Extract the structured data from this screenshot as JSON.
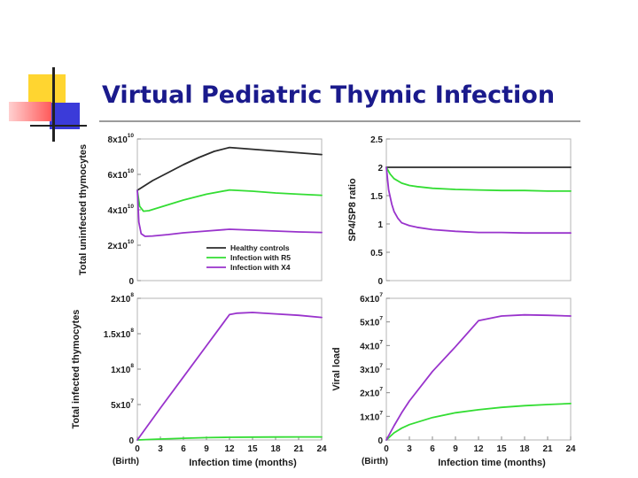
{
  "slide": {
    "title": "Virtual Pediatric Thymic Infection"
  },
  "colors": {
    "healthy": "#2b2b2b",
    "r5": "#33dd33",
    "x4": "#9933cc",
    "title": "#1a1a8c"
  },
  "chart_data": [
    {
      "type": "line",
      "ylabel": "Total uninfected thymocytes",
      "xlabel": "",
      "xlim": [
        0,
        24
      ],
      "ylim": [
        0,
        80000000000.0
      ],
      "yticks": [
        {
          "v": 0,
          "base": "0",
          "exp": ""
        },
        {
          "v": 20000000000.0,
          "base": "2x10",
          "exp": "10"
        },
        {
          "v": 40000000000.0,
          "base": "4x10",
          "exp": "10"
        },
        {
          "v": 60000000000.0,
          "base": "6x10",
          "exp": "10"
        },
        {
          "v": 80000000000.0,
          "base": "8x10",
          "exp": "10"
        }
      ],
      "legend": {
        "position": "bottom-right",
        "entries": [
          "Healthy controls",
          "Infection with R5",
          "Infection with X4"
        ]
      },
      "series": [
        {
          "name": "Healthy controls",
          "color": "healthy",
          "x": [
            0,
            2,
            4,
            6,
            8,
            10,
            12,
            15,
            18,
            21,
            24
          ],
          "y": [
            51000000000.0,
            56500000000.0,
            61000000000.0,
            65500000000.0,
            69500000000.0,
            73000000000.0,
            75200000000.0,
            74200000000.0,
            73200000000.0,
            72200000000.0,
            71200000000.0
          ]
        },
        {
          "name": "Infection with R5",
          "color": "r5",
          "x": [
            0,
            0.3,
            0.8,
            1.5,
            3,
            6,
            9,
            12,
            15,
            18,
            21,
            24
          ],
          "y": [
            51000000000.0,
            42000000000.0,
            39200000000.0,
            39500000000.0,
            41500000000.0,
            45500000000.0,
            48800000000.0,
            51200000000.0,
            50500000000.0,
            49500000000.0,
            48800000000.0,
            48200000000.0
          ]
        },
        {
          "name": "Infection with X4",
          "color": "x4",
          "x": [
            0,
            0.2,
            0.5,
            1,
            2,
            4,
            6,
            9,
            12,
            15,
            18,
            21,
            24
          ],
          "y": [
            51000000000.0,
            33000000000.0,
            26500000000.0,
            25000000000.0,
            25200000000.0,
            26000000000.0,
            27000000000.0,
            28000000000.0,
            29000000000.0,
            28500000000.0,
            28000000000.0,
            27500000000.0,
            27200000000.0
          ]
        }
      ]
    },
    {
      "type": "line",
      "ylabel": "SP4/SP8 ratio",
      "xlabel": "",
      "xlim": [
        0,
        24
      ],
      "ylim": [
        0,
        2.5
      ],
      "yticks": [
        {
          "v": 0,
          "base": "0",
          "exp": ""
        },
        {
          "v": 0.5,
          "base": "0.5",
          "exp": ""
        },
        {
          "v": 1,
          "base": "1",
          "exp": ""
        },
        {
          "v": 1.5,
          "base": "1.5",
          "exp": ""
        },
        {
          "v": 2,
          "base": "2",
          "exp": ""
        },
        {
          "v": 2.5,
          "base": "2.5",
          "exp": ""
        }
      ],
      "series": [
        {
          "name": "Healthy controls",
          "color": "healthy",
          "x": [
            0,
            24
          ],
          "y": [
            2.0,
            2.0
          ]
        },
        {
          "name": "Infection with R5",
          "color": "r5",
          "x": [
            0,
            0.5,
            1,
            2,
            3,
            4,
            6,
            9,
            12,
            15,
            18,
            21,
            24
          ],
          "y": [
            2.0,
            1.88,
            1.8,
            1.72,
            1.68,
            1.66,
            1.63,
            1.61,
            1.6,
            1.59,
            1.59,
            1.58,
            1.58
          ]
        },
        {
          "name": "Infection with X4",
          "color": "x4",
          "x": [
            0,
            0.3,
            0.7,
            1,
            1.5,
            2,
            3,
            4,
            6,
            9,
            12,
            15,
            18,
            21,
            24
          ],
          "y": [
            2.0,
            1.6,
            1.35,
            1.22,
            1.1,
            1.02,
            0.97,
            0.94,
            0.9,
            0.87,
            0.85,
            0.85,
            0.84,
            0.84,
            0.84
          ]
        }
      ]
    },
    {
      "type": "line",
      "ylabel": "Total infected thymocytes",
      "xlabel": "Infection time (months)",
      "xlabel_note": "(Birth)",
      "xlim": [
        0,
        24
      ],
      "ylim": [
        0,
        200000000.0
      ],
      "xticks": [
        "0",
        "3",
        "6",
        "9",
        "12",
        "15",
        "18",
        "21",
        "24"
      ],
      "yticks": [
        {
          "v": 0,
          "base": "0",
          "exp": ""
        },
        {
          "v": 50000000.0,
          "base": "5x10",
          "exp": "7"
        },
        {
          "v": 100000000.0,
          "base": "1x10",
          "exp": "8"
        },
        {
          "v": 150000000.0,
          "base": "1.5x10",
          "exp": "8"
        },
        {
          "v": 200000000.0,
          "base": "2x10",
          "exp": "8"
        }
      ],
      "series": [
        {
          "name": "Infection with R5",
          "color": "r5",
          "x": [
            0,
            3,
            6,
            9,
            12,
            15,
            18,
            21,
            24
          ],
          "y": [
            0,
            1200000.0,
            2400000.0,
            3200000.0,
            3800000.0,
            4000000.0,
            4100000.0,
            4200000.0,
            4200000.0
          ]
        },
        {
          "name": "Infection with X4",
          "color": "x4",
          "x": [
            0,
            3,
            6,
            9,
            12,
            13,
            15,
            18,
            21,
            24
          ],
          "y": [
            0,
            45000000.0,
            89000000.0,
            133000000.0,
            177000000.0,
            179000000.0,
            180000000.0,
            178000000.0,
            176000000.0,
            173000000.0
          ]
        }
      ]
    },
    {
      "type": "line",
      "ylabel": "Viral load",
      "xlabel": "Infection time (months)",
      "xlabel_note": "(Birth)",
      "xlim": [
        0,
        24
      ],
      "ylim": [
        0,
        60000000.0
      ],
      "xticks": [
        "0",
        "3",
        "6",
        "9",
        "12",
        "15",
        "18",
        "21",
        "24"
      ],
      "yticks": [
        {
          "v": 0,
          "base": "0",
          "exp": ""
        },
        {
          "v": 10000000.0,
          "base": "1x10",
          "exp": "7"
        },
        {
          "v": 20000000.0,
          "base": "2x10",
          "exp": "7"
        },
        {
          "v": 30000000.0,
          "base": "3x10",
          "exp": "7"
        },
        {
          "v": 40000000.0,
          "base": "4x10",
          "exp": "7"
        },
        {
          "v": 50000000.0,
          "base": "5x10",
          "exp": "7"
        },
        {
          "v": 60000000.0,
          "base": "6x10",
          "exp": "7"
        }
      ],
      "series": [
        {
          "name": "Infection with R5",
          "color": "r5",
          "x": [
            0,
            1,
            2,
            3,
            6,
            9,
            12,
            15,
            18,
            21,
            24
          ],
          "y": [
            0,
            3000000.0,
            5000000.0,
            6500000.0,
            9500000.0,
            11500000.0,
            12800000.0,
            13800000.0,
            14500000.0,
            15000000.0,
            15400000.0
          ]
        },
        {
          "name": "Infection with X4",
          "color": "x4",
          "x": [
            0,
            1,
            2,
            3,
            6,
            9,
            12,
            15,
            18,
            21,
            24
          ],
          "y": [
            0,
            6000000.0,
            11500000.0,
            16500000.0,
            29000000.0,
            39500000.0,
            50500000.0,
            52500000.0,
            53000000.0,
            52800000.0,
            52500000.0
          ]
        }
      ]
    }
  ]
}
